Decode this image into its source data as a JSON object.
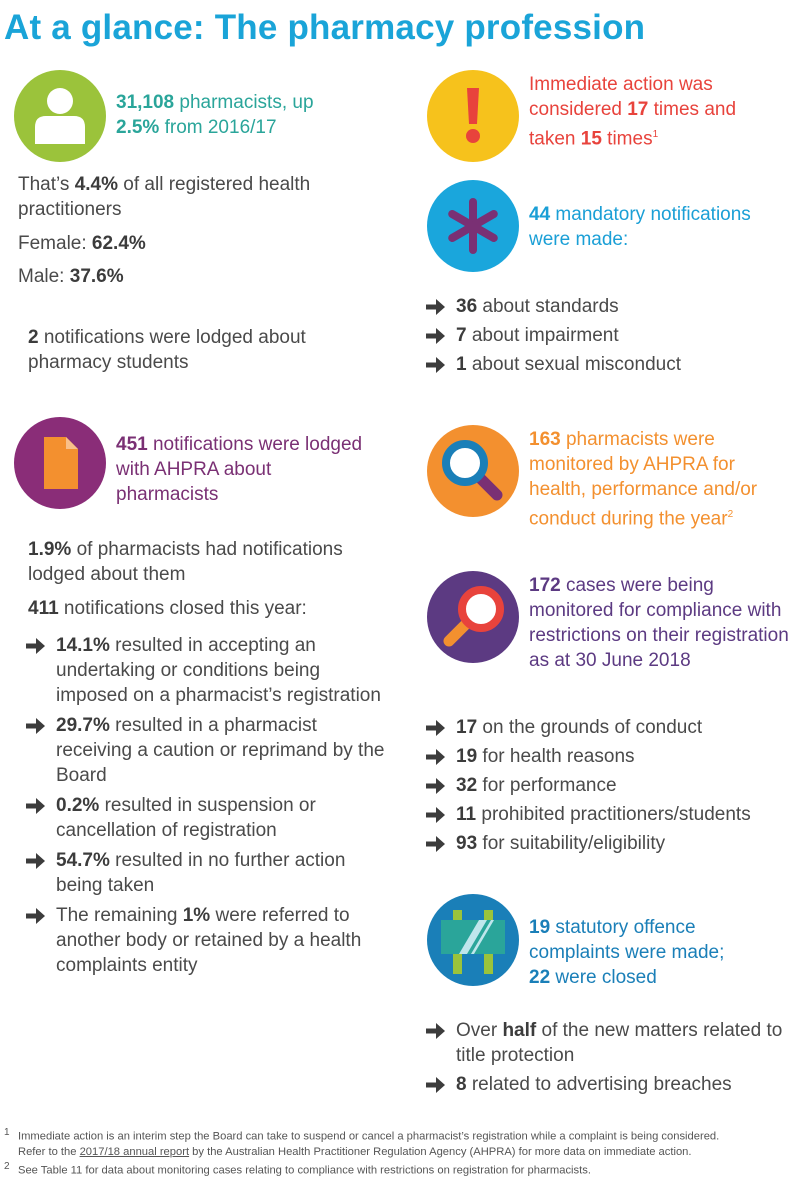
{
  "title": "At a glance: The pharmacy profession",
  "left": {
    "pharmacists": {
      "count": "31,108",
      "text1": " pharmacists, up",
      "pct": "2.5%",
      "text2": " from 2016/17",
      "icon": "person-icon",
      "color": "#9bc33b"
    },
    "share": {
      "pre": "That’s ",
      "pct": "4.4%",
      "post": " of all registered health practitioners"
    },
    "female": {
      "label": "Female: ",
      "value": "62.4%"
    },
    "male": {
      "label": "Male: ",
      "value": "37.6%"
    },
    "students": {
      "count": "2",
      "text": " notifications were lodged about pharmacy students"
    },
    "notifications": {
      "count": "451",
      "text": " notifications were lodged with AHPRA about pharmacists",
      "icon": "document-icon",
      "color": "#8a2d78"
    },
    "had_notifications": {
      "pct": "1.9%",
      "text": " of pharmacists had notifications lodged about them"
    },
    "closed": {
      "count": "411",
      "text": " notifications closed this year:"
    },
    "closed_items": [
      {
        "bold": "14.1%",
        "text": " resulted in accepting an undertaking or conditions being imposed on a pharmacist’s registration"
      },
      {
        "bold": "29.7%",
        "text": " resulted in a pharmacist receiving a caution or reprimand by the Board"
      },
      {
        "bold": "0.2%",
        "text": " resulted in suspension or cancellation of registration"
      },
      {
        "bold": "54.7%",
        "text": " resulted in no further action being taken"
      },
      {
        "pre": "The remaining ",
        "bold": "1%",
        "text": " were referred to another body or retained by a health complaints entity"
      }
    ]
  },
  "right": {
    "immediate": {
      "l1": "Immediate action was",
      "l2a": "considered ",
      "n1": "17",
      "l2b": " times and",
      "l3a": "taken ",
      "n2": "15",
      "l3b": " times",
      "sup": "1",
      "icon": "exclamation-icon",
      "color": "#f6c21c"
    },
    "mandatory": {
      "count": "44",
      "text1": " mandatory notifications",
      "text2": "were made:",
      "icon": "asterisk-icon",
      "color": "#1aa6dc"
    },
    "mandatory_items": [
      {
        "bold": "36",
        "text": " about standards"
      },
      {
        "bold": "7",
        "text": " about impairment"
      },
      {
        "bold": "1",
        "text": " about sexual misconduct"
      }
    ],
    "monitored": {
      "count": "163",
      "text": " pharmacists were monitored by AHPRA for health, performance and/or conduct during the year",
      "sup": "2",
      "icon": "magnifier-icon",
      "color": "#f3902f"
    },
    "cases": {
      "count": "172",
      "text": " cases were being monitored for compliance with restrictions on their registration as at 30 June 2018",
      "icon": "magnifier-icon",
      "color": "#5c3a82"
    },
    "cases_items": [
      {
        "bold": "17",
        "text": " on the grounds of conduct"
      },
      {
        "bold": "19",
        "text": " for health reasons"
      },
      {
        "bold": "32",
        "text": " for performance"
      },
      {
        "bold": "11",
        "text": " prohibited practitioners/students"
      },
      {
        "bold": "93",
        "text": " for suitability/eligibility"
      }
    ],
    "statutory": {
      "count1": "19",
      "text1": " statutory offence complaints were made;",
      "count2": "22",
      "text2": " were closed",
      "icon": "signboard-icon",
      "color": "#1a7fb8"
    },
    "statutory_items": [
      {
        "pre": "Over ",
        "bold": "half",
        "text": " of the new matters related to title protection"
      },
      {
        "bold": "8",
        "text": " related to advertising breaches"
      }
    ]
  },
  "footnotes": {
    "n1": "1",
    "f1a": "Immediate action is an interim step the Board can take to suspend or cancel a pharmacist’s registration while a complaint is being considered.",
    "f1b_pre": "Refer to the ",
    "f1b_link": "2017/18 annual report",
    "f1b_post": " by the Australian Health Practitioner Regulation Agency (AHPRA) for more data on immediate action.",
    "n2": "2",
    "f2": "See Table 11 for data about monitoring cases relating to compliance with restrictions on registration for pharmacists."
  }
}
